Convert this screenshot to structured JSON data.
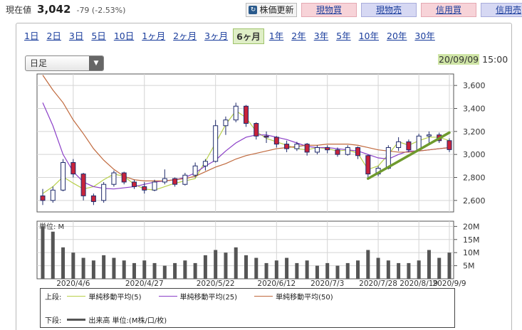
{
  "header": {
    "price_label": "現在値",
    "price_value": "3,042",
    "price_change": "-79 (-2.53%)"
  },
  "actions": {
    "update_label": "株価更新",
    "update_icon": "refresh-icon",
    "buy_label": "現物買",
    "sell_label": "現物売",
    "margin_buy_label": "信用買",
    "margin_sell_label": "信用売"
  },
  "periods": [
    "1日",
    "2日",
    "3日",
    "5日",
    "10日",
    "1ヶ月",
    "2ヶ月",
    "3ヶ月",
    "6ヶ月",
    "1年",
    "2年",
    "3年",
    "5年",
    "10年",
    "20年",
    "30年"
  ],
  "active_period": "6ヶ月",
  "chart_type_select": {
    "value": "日足"
  },
  "timestamp": {
    "date": "20/09/09",
    "time": "15:00"
  },
  "legend": {
    "upper_label": "上段:",
    "ma5_label": "単純移動平均(5)",
    "ma25_label": "単純移動平均(25)",
    "ma50_label": "単純移動平均(50)",
    "lower_label": "下段:",
    "volume_label": "出来高 単位:(M株/口/枚)"
  },
  "colors": {
    "ma5": "#b8d04a",
    "ma25": "#8b3fc8",
    "ma50": "#c0693d",
    "candle_up": "#ffffff",
    "candle_down": "#c8233a",
    "volume": "#555555",
    "trendline": "#6f9a2e",
    "grid": "#d4d4d4"
  },
  "chart_data": [
    {
      "type": "candlestick",
      "x_tick_labels": [
        "2020/4/6",
        "2020/4/27",
        "2020/5/22",
        "2020/6/12",
        "2020/7/3",
        "2020/7/28",
        "2020/8/19",
        "2020/9/9"
      ],
      "ylim": [
        2500,
        3700
      ],
      "y_ticks": [
        2600,
        2800,
        3000,
        3200,
        3400,
        3600
      ],
      "y_tick_labels": [
        "2,600",
        "2,800",
        "3,000",
        "3,200",
        "3,400",
        "3,600"
      ],
      "series": [
        {
          "name": "単純移動平均(5)",
          "values": [
            2660,
            2720,
            2805,
            2750,
            2700,
            2720,
            2780,
            2830,
            2810,
            2740,
            2700,
            2690,
            2720,
            2750,
            2770,
            2790,
            2940,
            3100,
            3260,
            3380,
            3320,
            3200,
            3140,
            3110,
            3080,
            3050,
            3040,
            3060,
            3050,
            3030,
            3040,
            3010,
            2870,
            2900,
            3000,
            3110,
            3080,
            3120,
            3150,
            3150,
            3120
          ]
        },
        {
          "name": "単純移動平均(25)",
          "values": [
            3450,
            3250,
            3000,
            2850,
            2760,
            2720,
            2705,
            2700,
            2710,
            2720,
            2740,
            2760,
            2770,
            2780,
            2800,
            2840,
            2900,
            2950,
            3030,
            3100,
            3150,
            3170,
            3170,
            3150,
            3130,
            3100,
            3070,
            3060,
            3060,
            3050,
            3040,
            3030,
            3000,
            2970,
            2960,
            3000,
            3030,
            3030,
            3040,
            3050,
            3060
          ]
        },
        {
          "name": "単純移動平均(50)",
          "values": [
            3690,
            3560,
            3450,
            3300,
            3180,
            3050,
            2950,
            2870,
            2810,
            2780,
            2770,
            2770,
            2770,
            2780,
            2790,
            2810,
            2850,
            2890,
            2920,
            2960,
            2990,
            3010,
            3030,
            3050,
            3060,
            3070,
            3080,
            3080,
            3090,
            3090,
            3090,
            3080,
            3060,
            3040,
            3030,
            3020,
            3020,
            3030,
            3040,
            3050,
            3060
          ]
        }
      ],
      "candles": [
        {
          "o": 2640,
          "h": 2700,
          "l": 2560,
          "c": 2600
        },
        {
          "o": 2600,
          "h": 2720,
          "l": 2580,
          "c": 2690
        },
        {
          "o": 2690,
          "h": 2960,
          "l": 2680,
          "c": 2930
        },
        {
          "o": 2930,
          "h": 2960,
          "l": 2800,
          "c": 2830
        },
        {
          "o": 2830,
          "h": 2840,
          "l": 2600,
          "c": 2640
        },
        {
          "o": 2640,
          "h": 2660,
          "l": 2560,
          "c": 2590
        },
        {
          "o": 2600,
          "h": 2760,
          "l": 2580,
          "c": 2740
        },
        {
          "o": 2740,
          "h": 2860,
          "l": 2720,
          "c": 2840
        },
        {
          "o": 2840,
          "h": 2850,
          "l": 2740,
          "c": 2760
        },
        {
          "o": 2760,
          "h": 2780,
          "l": 2700,
          "c": 2720
        },
        {
          "o": 2720,
          "h": 2760,
          "l": 2660,
          "c": 2690
        },
        {
          "o": 2690,
          "h": 2780,
          "l": 2680,
          "c": 2760
        },
        {
          "o": 2760,
          "h": 2870,
          "l": 2740,
          "c": 2790
        },
        {
          "o": 2790,
          "h": 2800,
          "l": 2720,
          "c": 2740
        },
        {
          "o": 2740,
          "h": 2840,
          "l": 2730,
          "c": 2820
        },
        {
          "o": 2820,
          "h": 2930,
          "l": 2800,
          "c": 2900
        },
        {
          "o": 2900,
          "h": 2960,
          "l": 2860,
          "c": 2940
        },
        {
          "o": 2940,
          "h": 3300,
          "l": 2930,
          "c": 3250
        },
        {
          "o": 3250,
          "h": 3330,
          "l": 3170,
          "c": 3300
        },
        {
          "o": 3300,
          "h": 3450,
          "l": 3280,
          "c": 3420
        },
        {
          "o": 3420,
          "h": 3430,
          "l": 3240,
          "c": 3270
        },
        {
          "o": 3270,
          "h": 3280,
          "l": 3130,
          "c": 3160
        },
        {
          "o": 3160,
          "h": 3200,
          "l": 3100,
          "c": 3150
        },
        {
          "o": 3150,
          "h": 3160,
          "l": 3060,
          "c": 3090
        },
        {
          "o": 3090,
          "h": 3120,
          "l": 3020,
          "c": 3050
        },
        {
          "o": 3050,
          "h": 3110,
          "l": 3030,
          "c": 3090
        },
        {
          "o": 3090,
          "h": 3100,
          "l": 2990,
          "c": 3020
        },
        {
          "o": 3020,
          "h": 3080,
          "l": 3000,
          "c": 3060
        },
        {
          "o": 3060,
          "h": 3080,
          "l": 3010,
          "c": 3040
        },
        {
          "o": 3040,
          "h": 3060,
          "l": 2980,
          "c": 3000
        },
        {
          "o": 3000,
          "h": 3080,
          "l": 2990,
          "c": 3060
        },
        {
          "o": 3060,
          "h": 3070,
          "l": 2960,
          "c": 2990
        },
        {
          "o": 2990,
          "h": 3000,
          "l": 2780,
          "c": 2830
        },
        {
          "o": 2830,
          "h": 2900,
          "l": 2810,
          "c": 2880
        },
        {
          "o": 2880,
          "h": 3080,
          "l": 2870,
          "c": 3060
        },
        {
          "o": 3060,
          "h": 3150,
          "l": 3030,
          "c": 3110
        },
        {
          "o": 3110,
          "h": 3130,
          "l": 3020,
          "c": 3040
        },
        {
          "o": 3040,
          "h": 3180,
          "l": 3030,
          "c": 3160
        },
        {
          "o": 3160,
          "h": 3200,
          "l": 3100,
          "c": 3170
        },
        {
          "o": 3170,
          "h": 3190,
          "l": 3100,
          "c": 3120
        },
        {
          "o": 3120,
          "h": 3140,
          "l": 3020,
          "c": 3042
        }
      ],
      "trendline": {
        "from": {
          "index": 32,
          "value": 2790
        },
        "to": {
          "index": 40,
          "value": 3190
        }
      }
    },
    {
      "type": "bar",
      "title": "単位: M",
      "ylim": [
        0,
        22
      ],
      "y_ticks": [
        5,
        10,
        15,
        20
      ],
      "y_tick_labels": [
        "5M",
        "10M",
        "15M",
        "20M"
      ],
      "values": [
        20,
        18,
        12,
        10,
        8,
        7,
        9,
        8,
        7,
        6,
        7,
        6,
        5,
        6,
        7,
        6,
        9,
        11,
        10,
        12,
        9,
        8,
        6,
        7,
        8,
        6,
        7,
        5,
        6,
        5,
        6,
        7,
        11,
        8,
        7,
        6,
        6,
        7,
        11,
        8,
        10
      ]
    }
  ]
}
